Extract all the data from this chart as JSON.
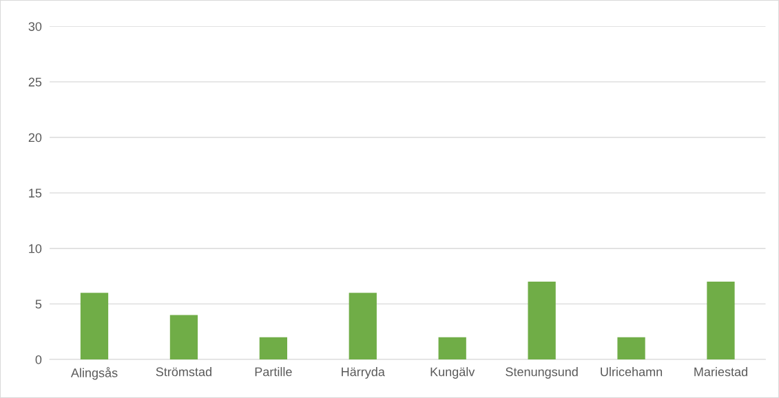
{
  "chart_data": {
    "type": "bar",
    "categories": [
      "Alingsås",
      "Strömstad",
      "Partille",
      "Härryda",
      "Kungälv",
      "Stenungsund",
      "Ulricehamn",
      "Mariestad"
    ],
    "values": [
      6,
      4,
      2,
      6,
      2,
      7,
      2,
      7
    ],
    "color": "#70ad47",
    "ylim": [
      0,
      30
    ],
    "yticks": [
      0,
      5,
      10,
      15,
      20,
      25,
      30
    ],
    "grid": "y"
  }
}
